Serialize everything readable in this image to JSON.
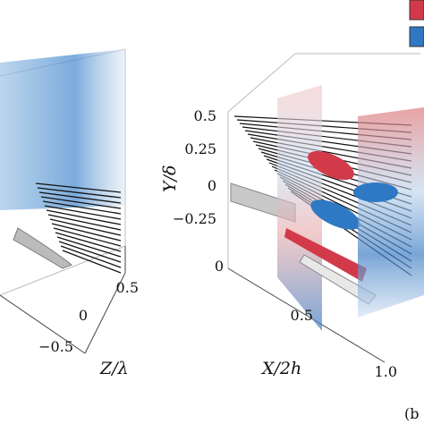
{
  "left_panel": {
    "z_axis": {
      "title": "Z/λ",
      "ticks": [
        "0.5",
        "0",
        "−0.5"
      ]
    }
  },
  "right_panel": {
    "y_axis": {
      "title": "Y/δ",
      "ticks": [
        "0.5",
        "0.25",
        "0",
        "−0.25"
      ]
    },
    "x_axis": {
      "title": "X/2h",
      "ticks": [
        "0",
        "0.5",
        "1.0"
      ]
    }
  },
  "panel_label": "(b"
}
